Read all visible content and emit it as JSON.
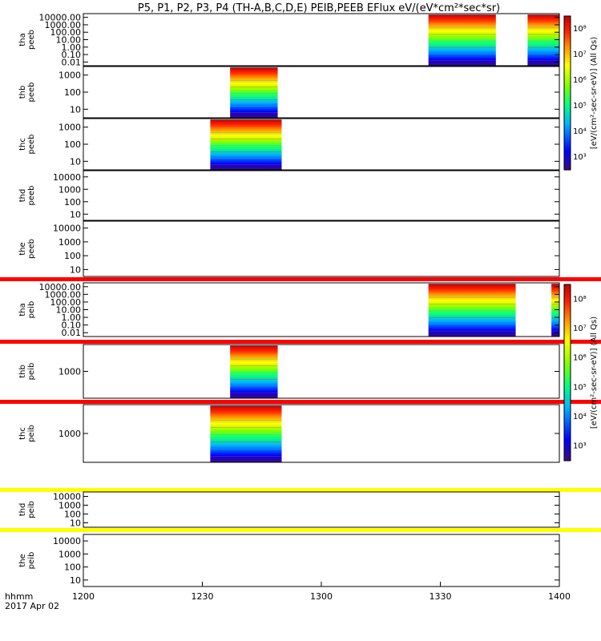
{
  "chart_data": {
    "type": "heatmap",
    "title": "P5, P1, P2, P3, P4 (TH-A,B,C,D,E) PEIB,PEEB EFlux eV/(eV*cm²*sec*sr)",
    "x_label_left": "hhmm",
    "date_label": "2017 Apr 02",
    "x_ticks": [
      "1200",
      "1230",
      "1300",
      "1330",
      "1400"
    ],
    "x_range": [
      0,
      120
    ],
    "colorbar_top": {
      "label": "[eV/(cm²-sec-sr-eV)] (All Qs)",
      "ticks": [
        "10³",
        "10⁴",
        "10⁵",
        "10⁶",
        "10⁷",
        "10⁸"
      ]
    },
    "colorbar_bottom": {
      "label": "[eV/(cm²-sec-sr-eV)] (All Qs)",
      "ticks": [
        "10³",
        "10⁴",
        "10⁵",
        "10⁶",
        "10⁷",
        "10⁸"
      ]
    },
    "panels": [
      {
        "probe": "tha",
        "product": "peeb",
        "y_ticks": [
          "0.01",
          "0.10",
          "1.00",
          "10.00",
          "100.00",
          "1000.00",
          "10000.00"
        ],
        "data_intervals": [
          [
            87,
            104
          ],
          [
            112,
            120
          ]
        ],
        "rail": null
      },
      {
        "probe": "thb",
        "product": "peeb",
        "y_ticks": [
          "10",
          "100",
          "1000"
        ],
        "data_intervals": [
          [
            37,
            49
          ]
        ],
        "rail": null
      },
      {
        "probe": "thc",
        "product": "peeb",
        "y_ticks": [
          "10",
          "100",
          "1000"
        ],
        "data_intervals": [
          [
            32,
            50
          ]
        ],
        "rail": null
      },
      {
        "probe": "thd",
        "product": "peeb",
        "y_ticks": [
          "10",
          "100",
          "1000",
          "10000"
        ],
        "data_intervals": [],
        "rail": null
      },
      {
        "probe": "the",
        "product": "peeb",
        "y_ticks": [
          "10",
          "100",
          "1000",
          "10000"
        ],
        "data_intervals": [],
        "rail": "red"
      },
      {
        "probe": "tha",
        "product": "peib",
        "y_ticks": [
          "0.01",
          "0.10",
          "1.00",
          "10.00",
          "100.00",
          "1000.00",
          "10000.00"
        ],
        "data_intervals": [
          [
            87,
            109
          ],
          [
            118,
            120
          ]
        ],
        "rail": "red"
      },
      {
        "probe": "thb",
        "product": "peib",
        "y_ticks": [
          "1000"
        ],
        "data_intervals": [
          [
            37,
            49
          ]
        ],
        "rail": "red"
      },
      {
        "probe": "thc",
        "product": "peib",
        "y_ticks": [
          "1000"
        ],
        "data_intervals": [
          [
            32,
            50
          ]
        ],
        "rail": "yellow"
      },
      {
        "probe": "thd",
        "product": "peib",
        "y_ticks": [
          "10",
          "100",
          "1000",
          "10000"
        ],
        "data_intervals": [],
        "rail": "yellow"
      },
      {
        "probe": "the",
        "product": "peib",
        "y_ticks": [
          "10",
          "100",
          "1000",
          "10000"
        ],
        "data_intervals": [],
        "rail": null
      }
    ]
  }
}
